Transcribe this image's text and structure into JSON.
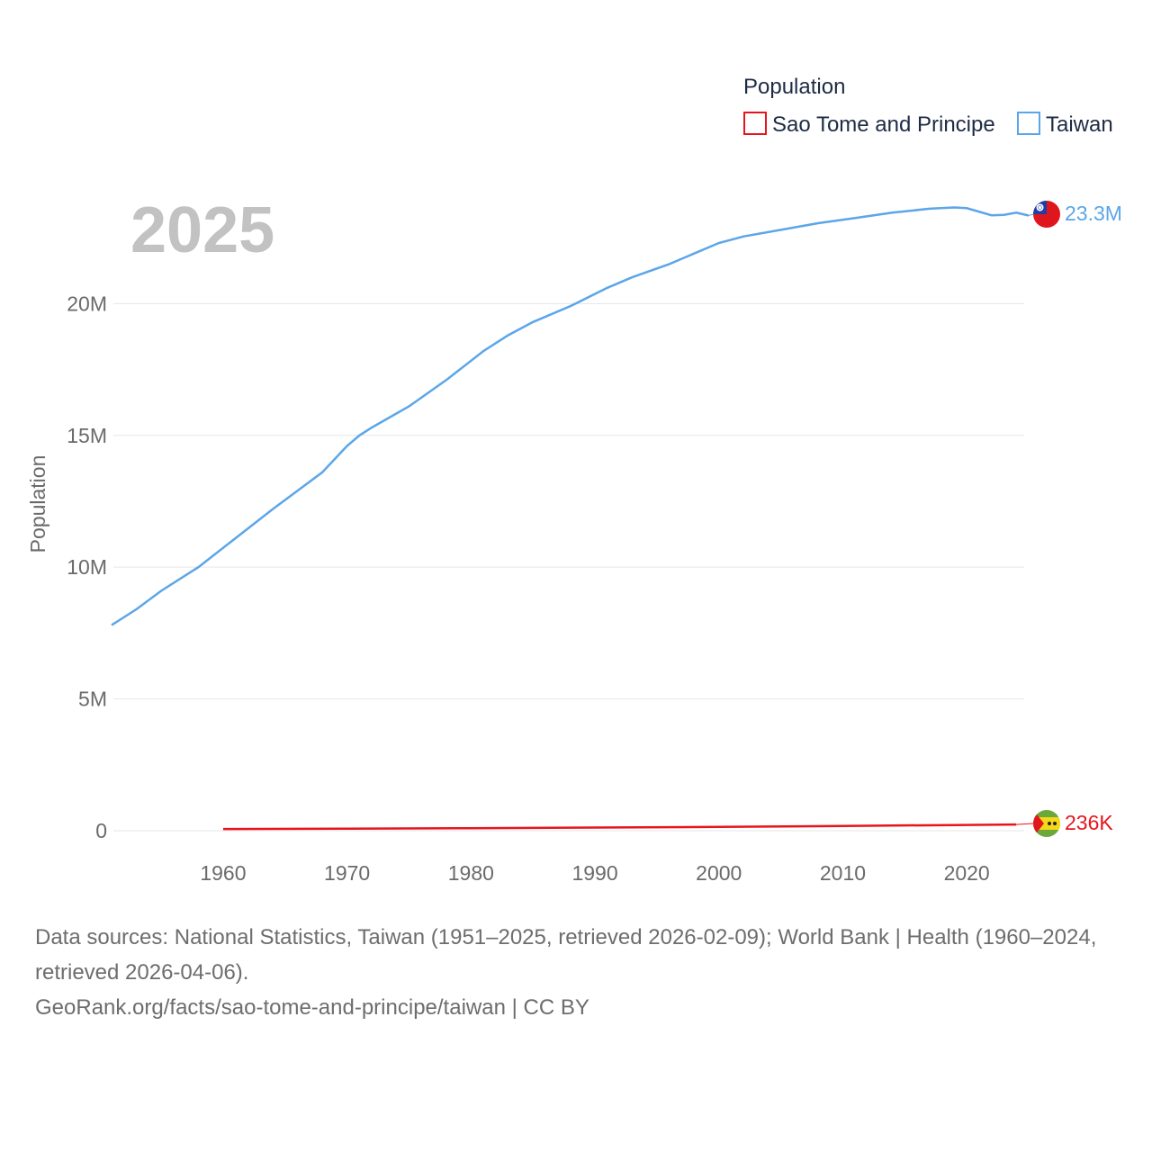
{
  "chart_data": {
    "type": "line",
    "year_label": "2025",
    "ylabel": "Population",
    "legend_title": "Population",
    "xlim": [
      1951,
      2025
    ],
    "ylim": [
      0,
      23700000
    ],
    "x_ticks": [
      1960,
      1970,
      1980,
      1990,
      2000,
      2010,
      2020
    ],
    "y_ticks": [
      {
        "value": 0,
        "label": "0"
      },
      {
        "value": 5000000,
        "label": "5M"
      },
      {
        "value": 10000000,
        "label": "10M"
      },
      {
        "value": 15000000,
        "label": "15M"
      },
      {
        "value": 20000000,
        "label": "20M"
      }
    ],
    "series": [
      {
        "name": "Sao Tome and Principe",
        "color": "#e8141c",
        "end_label": "236K",
        "flag": "sao-tome-flag-icon",
        "points": [
          [
            1960,
            64000
          ],
          [
            1970,
            74000
          ],
          [
            1980,
            95000
          ],
          [
            1990,
            118000
          ],
          [
            2000,
            142000
          ],
          [
            2010,
            180000
          ],
          [
            2020,
            219000
          ],
          [
            2024,
            236000
          ]
        ]
      },
      {
        "name": "Taiwan",
        "color": "#5ba6e8",
        "end_label": "23.3M",
        "flag": "taiwan-flag-icon",
        "points": [
          [
            1951,
            7800000
          ],
          [
            1953,
            8400000
          ],
          [
            1955,
            9100000
          ],
          [
            1958,
            10000000
          ],
          [
            1961,
            11100000
          ],
          [
            1964,
            12200000
          ],
          [
            1966,
            12900000
          ],
          [
            1968,
            13600000
          ],
          [
            1970,
            14600000
          ],
          [
            1971,
            15000000
          ],
          [
            1972,
            15300000
          ],
          [
            1975,
            16100000
          ],
          [
            1978,
            17100000
          ],
          [
            1981,
            18200000
          ],
          [
            1983,
            18800000
          ],
          [
            1985,
            19300000
          ],
          [
            1988,
            19900000
          ],
          [
            1991,
            20600000
          ],
          [
            1993,
            21000000
          ],
          [
            1996,
            21500000
          ],
          [
            1998,
            21900000
          ],
          [
            2000,
            22300000
          ],
          [
            2002,
            22550000
          ],
          [
            2005,
            22800000
          ],
          [
            2008,
            23050000
          ],
          [
            2011,
            23250000
          ],
          [
            2014,
            23450000
          ],
          [
            2017,
            23600000
          ],
          [
            2019,
            23650000
          ],
          [
            2020,
            23620000
          ],
          [
            2022,
            23350000
          ],
          [
            2023,
            23370000
          ],
          [
            2024,
            23450000
          ],
          [
            2025,
            23340000
          ]
        ]
      }
    ]
  },
  "source": {
    "line1": "Data sources: National Statistics, Taiwan (1951–2025, retrieved 2026-02-09); World Bank | Health (1960–2024, retrieved 2026-04-06).",
    "line2": "GeoRank.org/facts/sao-tome-and-principe/taiwan | CC BY"
  }
}
